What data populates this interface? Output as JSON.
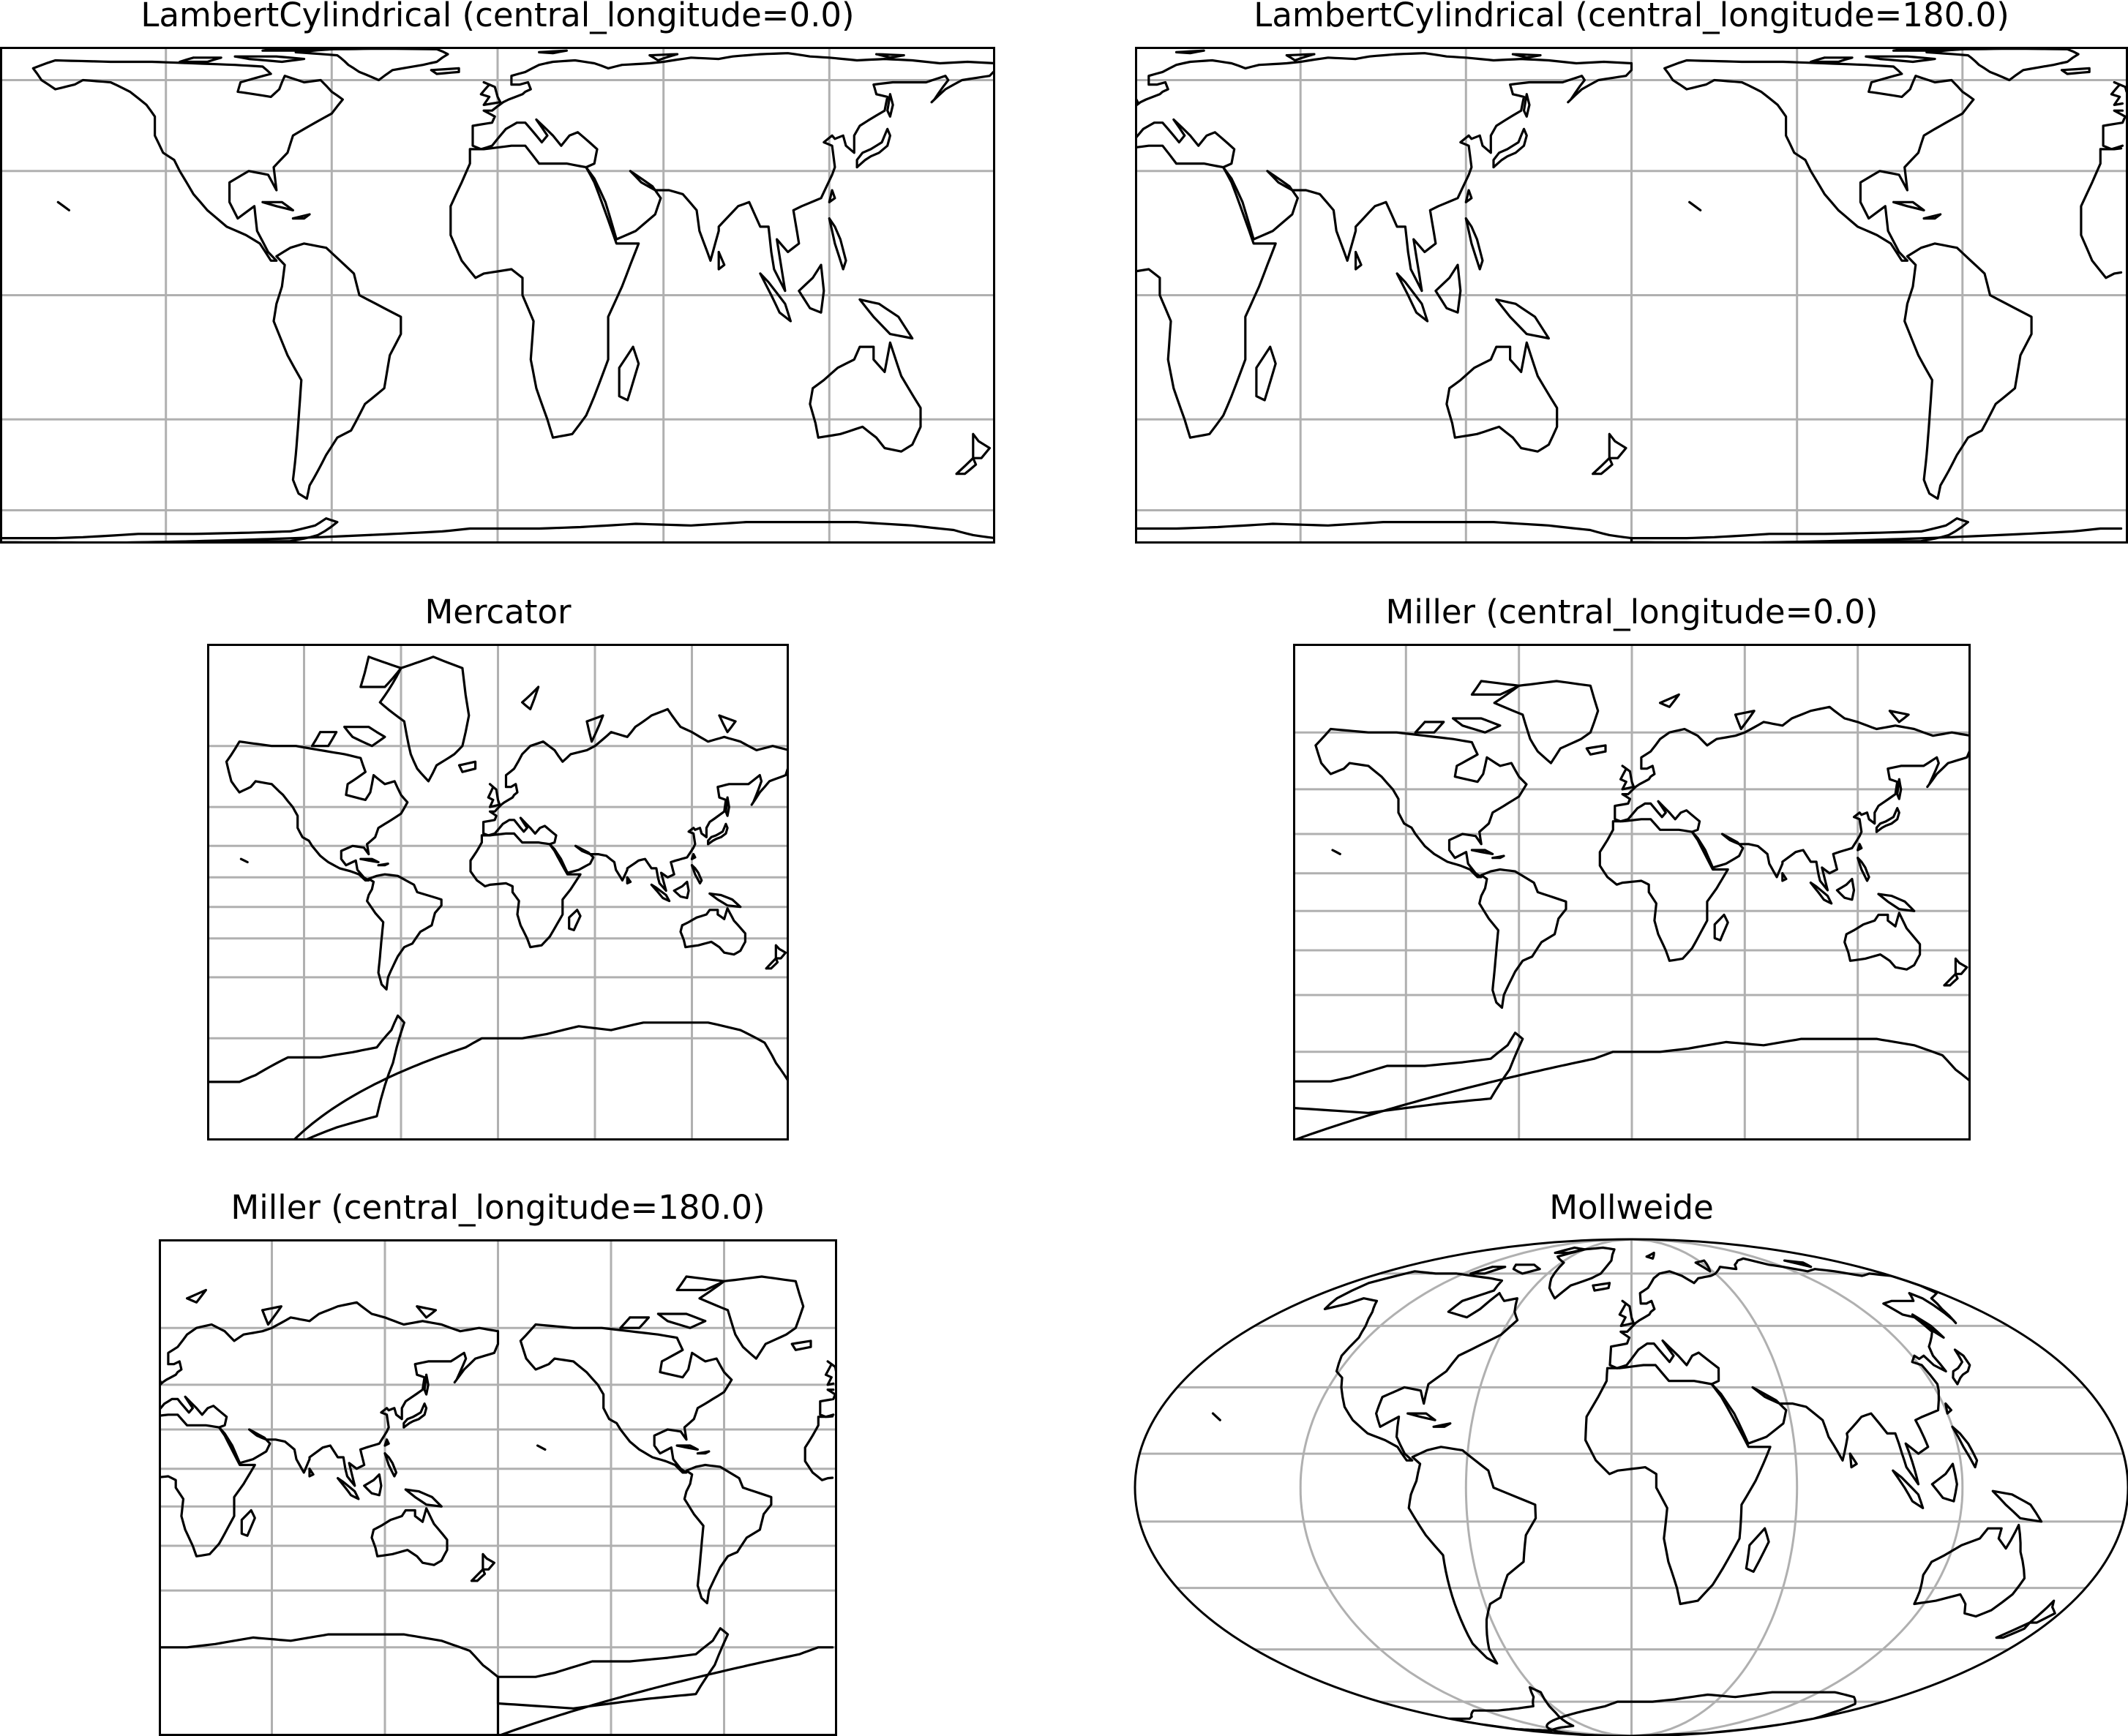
{
  "figure": {
    "panels": [
      {
        "id": "lambert-0",
        "title": "LambertCylindrical (central_longitude=0.0)",
        "projection": "lambert",
        "central_longitude": 0.0,
        "extent": "global",
        "gridlines": true,
        "meridian_step": 60,
        "parallel_step": 30
      },
      {
        "id": "lambert-180",
        "title": "LambertCylindrical (central_longitude=180.0)",
        "projection": "lambert",
        "central_longitude": 180.0,
        "extent": "global",
        "gridlines": true,
        "meridian_step": 60,
        "parallel_step": 30
      },
      {
        "id": "mercator",
        "title": "Mercator",
        "projection": "mercator",
        "central_longitude": 0.0,
        "extent": "global",
        "gridlines": true,
        "meridian_step": 60,
        "parallel_step": 20
      },
      {
        "id": "miller-0",
        "title": "Miller (central_longitude=0.0)",
        "projection": "miller",
        "central_longitude": 0.0,
        "extent": "global",
        "gridlines": true,
        "meridian_step": 60,
        "parallel_step": 20
      },
      {
        "id": "miller-180",
        "title": "Miller (central_longitude=180.0)",
        "projection": "miller",
        "central_longitude": 180.0,
        "extent": "global",
        "gridlines": true,
        "meridian_step": 60,
        "parallel_step": 20
      },
      {
        "id": "mollweide",
        "title": "Mollweide",
        "projection": "mollweide",
        "central_longitude": 0.0,
        "extent": "global",
        "gridlines": true,
        "meridian_step": 60,
        "parallel_step": 20
      }
    ],
    "colors": {
      "coastline": "#000000",
      "gridline": "#b0b0b0",
      "frame": "#000000",
      "background": "#ffffff"
    }
  }
}
